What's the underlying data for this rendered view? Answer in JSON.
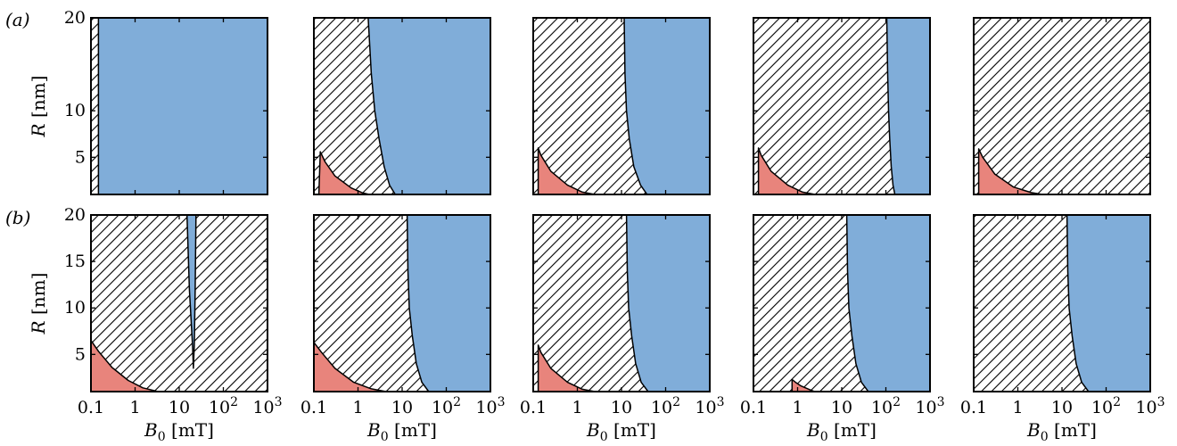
{
  "chart_data": {
    "type": "area",
    "row_labels": [
      "(a)",
      "(b)"
    ],
    "xlabel": "B_0 [mT]",
    "ylabel": "R [nm]",
    "x_scale": "log",
    "xlim": [
      0.1,
      1000
    ],
    "ylim": [
      1,
      20
    ],
    "x_ticks": [
      {
        "value": 0.1,
        "label": "0.1"
      },
      {
        "value": 1,
        "label": "1"
      },
      {
        "value": 10,
        "label": "10"
      },
      {
        "value": 100,
        "label": "10",
        "sup": "2"
      },
      {
        "value": 1000,
        "label": "10",
        "sup": "3"
      }
    ],
    "y_ticks_row_a": [
      5,
      10,
      20
    ],
    "y_ticks_row_b": [
      5,
      10,
      15,
      20
    ],
    "region_colors": {
      "blue": "#80add9",
      "red": "#e8847c",
      "hatch": "#000000",
      "background": "#ffffff"
    },
    "panels": [
      {
        "row": 0,
        "col": 0,
        "red": [],
        "blue": [
          [
            0.148,
            1
          ],
          [
            0.148,
            20
          ],
          [
            1000,
            20
          ],
          [
            1000,
            1
          ]
        ]
      },
      {
        "row": 0,
        "col": 1,
        "red": [
          [
            0.13,
            1
          ],
          [
            0.14,
            5.6
          ],
          [
            0.18,
            4.5
          ],
          [
            0.3,
            3.0
          ],
          [
            0.7,
            1.7
          ],
          [
            1.3,
            1.15
          ],
          [
            1.8,
            1
          ]
        ],
        "blue": [
          [
            1.7,
            20
          ],
          [
            2.0,
            14
          ],
          [
            2.4,
            10
          ],
          [
            3.0,
            7
          ],
          [
            3.9,
            4
          ],
          [
            5.2,
            2
          ],
          [
            7.0,
            1
          ],
          [
            1000,
            1
          ],
          [
            1000,
            20
          ]
        ]
      },
      {
        "row": 0,
        "col": 2,
        "red": [
          [
            0.13,
            1
          ],
          [
            0.13,
            6.0
          ],
          [
            0.15,
            5.2
          ],
          [
            0.25,
            3.5
          ],
          [
            0.6,
            2.0
          ],
          [
            1.3,
            1.25
          ],
          [
            2.5,
            1
          ]
        ],
        "blue": [
          [
            11.5,
            20
          ],
          [
            12,
            14
          ],
          [
            13,
            10
          ],
          [
            15,
            7
          ],
          [
            19,
            4
          ],
          [
            27,
            2
          ],
          [
            38,
            1
          ],
          [
            1000,
            1
          ],
          [
            1000,
            20
          ]
        ]
      },
      {
        "row": 0,
        "col": 3,
        "red": [
          [
            0.13,
            1
          ],
          [
            0.13,
            6.0
          ],
          [
            0.15,
            5.2
          ],
          [
            0.25,
            3.5
          ],
          [
            0.6,
            2.0
          ],
          [
            1.3,
            1.25
          ],
          [
            2.5,
            1
          ]
        ],
        "blue": [
          [
            105,
            20
          ],
          [
            110,
            14
          ],
          [
            115,
            10
          ],
          [
            122,
            7
          ],
          [
            132,
            4
          ],
          [
            145,
            2
          ],
          [
            160,
            1
          ],
          [
            1000,
            1
          ],
          [
            1000,
            20
          ]
        ]
      },
      {
        "row": 0,
        "col": 4,
        "red": [
          [
            0.13,
            1
          ],
          [
            0.13,
            5.9
          ],
          [
            0.16,
            5.0
          ],
          [
            0.3,
            3.2
          ],
          [
            0.8,
            1.8
          ],
          [
            2.0,
            1.2
          ],
          [
            3.6,
            1
          ]
        ],
        "blue": []
      },
      {
        "row": 1,
        "col": 0,
        "red": [
          [
            0.1,
            1
          ],
          [
            0.1,
            6.5
          ],
          [
            0.15,
            5.3
          ],
          [
            0.3,
            3.6
          ],
          [
            0.7,
            2.2
          ],
          [
            1.5,
            1.4
          ],
          [
            3.3,
            1
          ]
        ],
        "blue": [
          [
            15,
            20
          ],
          [
            17,
            12
          ],
          [
            20,
            6
          ],
          [
            21,
            3.5
          ],
          [
            22,
            6
          ],
          [
            23,
            12
          ],
          [
            24,
            20
          ]
        ]
      },
      {
        "row": 1,
        "col": 1,
        "red": [
          [
            0.1,
            1
          ],
          [
            0.1,
            6.3
          ],
          [
            0.15,
            5.2
          ],
          [
            0.3,
            3.5
          ],
          [
            0.8,
            2.0
          ],
          [
            2.0,
            1.3
          ],
          [
            4.3,
            1
          ]
        ],
        "blue": [
          [
            13,
            20
          ],
          [
            13.5,
            14
          ],
          [
            14.5,
            10
          ],
          [
            17,
            7
          ],
          [
            21,
            4
          ],
          [
            28,
            2
          ],
          [
            40,
            1
          ],
          [
            1000,
            1
          ],
          [
            1000,
            20
          ]
        ]
      },
      {
        "row": 1,
        "col": 2,
        "red": [
          [
            0.13,
            1
          ],
          [
            0.13,
            6.0
          ],
          [
            0.15,
            5.2
          ],
          [
            0.25,
            3.5
          ],
          [
            0.6,
            2.0
          ],
          [
            1.3,
            1.25
          ],
          [
            2.5,
            1
          ]
        ],
        "blue": [
          [
            13,
            20
          ],
          [
            13.5,
            14
          ],
          [
            14.5,
            10
          ],
          [
            17,
            7
          ],
          [
            21,
            4
          ],
          [
            28,
            2
          ],
          [
            40,
            1
          ],
          [
            1000,
            1
          ],
          [
            1000,
            20
          ]
        ]
      },
      {
        "row": 1,
        "col": 3,
        "red": [
          [
            0.75,
            1
          ],
          [
            0.75,
            2.3
          ],
          [
            0.9,
            2.0
          ],
          [
            1.2,
            1.6
          ],
          [
            1.8,
            1.25
          ],
          [
            2.4,
            1
          ]
        ],
        "blue": [
          [
            13,
            20
          ],
          [
            13.5,
            14
          ],
          [
            14.5,
            10
          ],
          [
            17,
            7
          ],
          [
            21,
            4
          ],
          [
            28,
            2
          ],
          [
            40,
            1
          ],
          [
            1000,
            1
          ],
          [
            1000,
            20
          ]
        ]
      },
      {
        "row": 1,
        "col": 4,
        "red": [],
        "blue": [
          [
            13,
            20
          ],
          [
            13.5,
            14
          ],
          [
            14.5,
            10
          ],
          [
            17,
            7
          ],
          [
            21,
            4
          ],
          [
            28,
            2
          ],
          [
            40,
            1
          ],
          [
            1000,
            1
          ],
          [
            1000,
            20
          ]
        ]
      }
    ]
  }
}
